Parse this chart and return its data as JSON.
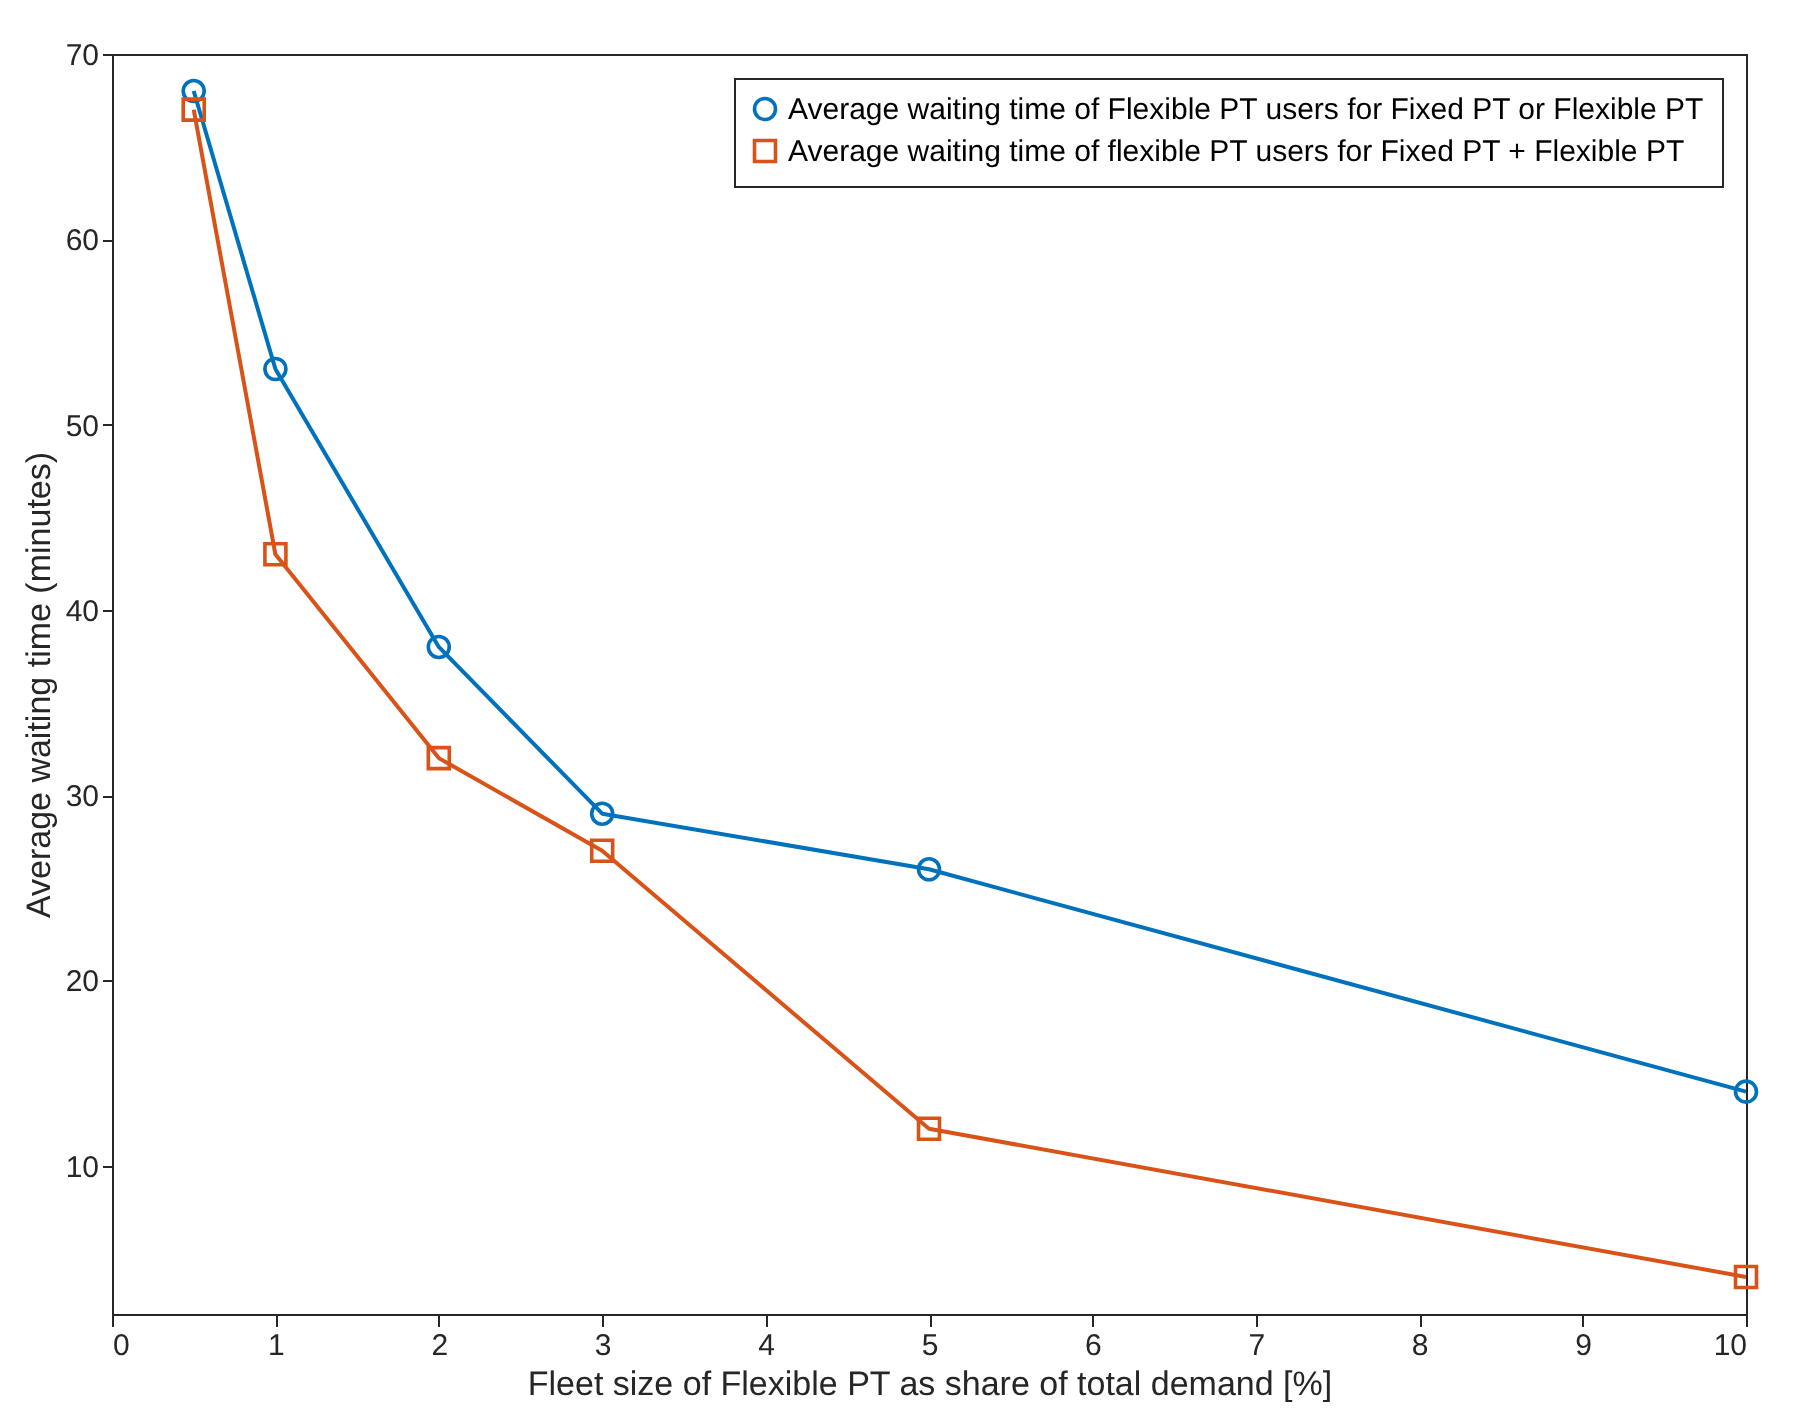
{
  "chart_data": {
    "type": "line",
    "xlabel": "Fleet size of Flexible PT as share of total demand [%]",
    "ylabel": "Average waiting time (minutes)",
    "xlim": [
      0,
      10
    ],
    "xticks": [
      0,
      1,
      2,
      3,
      4,
      5,
      6,
      7,
      8,
      9,
      10
    ],
    "ylim": [
      2,
      70
    ],
    "yticks": [
      10,
      20,
      30,
      40,
      50,
      60,
      70
    ],
    "grid": false,
    "legend": "top right",
    "line_style": "solid",
    "series": [
      {
        "name": "Average waiting time of Flexible PT users for Fixed PT or Flexible PT",
        "color": "#0072bd",
        "marker": "circle",
        "x": [
          0.5,
          1,
          2,
          3,
          5,
          10
        ],
        "values": [
          68,
          53,
          38,
          29,
          26,
          14
        ]
      },
      {
        "name": "Average waiting time of flexible PT users for Fixed PT + Flexible PT",
        "color": "#d95319",
        "marker": "square",
        "x": [
          0.5,
          1,
          2,
          3,
          5,
          10
        ],
        "values": [
          67,
          43,
          32,
          27,
          12,
          4
        ]
      }
    ]
  }
}
